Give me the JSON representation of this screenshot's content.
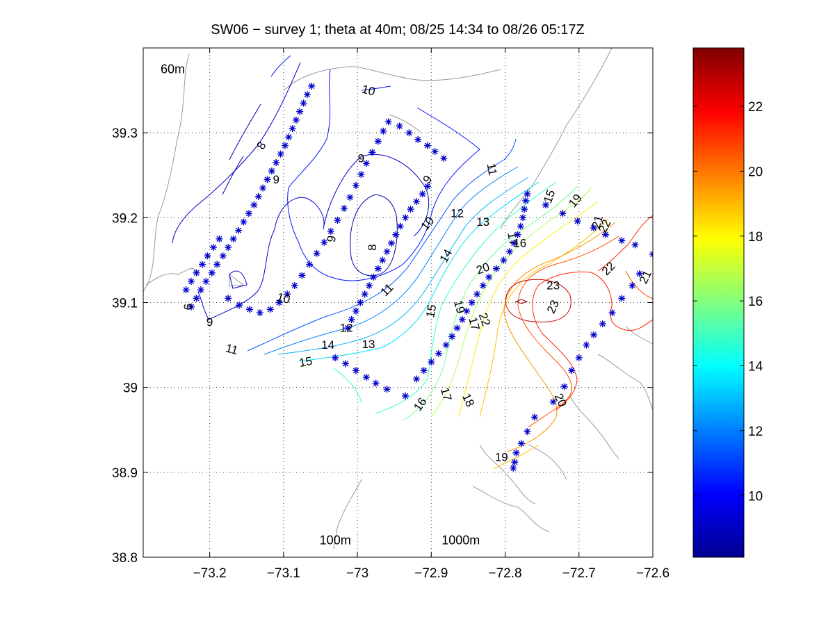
{
  "chart_data": {
    "type": "contour",
    "title": "SW06 − survey 1; theta at 40m; 08/25 14:34 to 08/26 05:17Z",
    "xlabel": "",
    "ylabel": "",
    "xlim": [
      -73.29,
      -72.6
    ],
    "ylim": [
      38.8,
      39.4
    ],
    "xticks": [
      -73.2,
      -73.1,
      -73.0,
      -72.9,
      -72.8,
      -72.7,
      -72.6
    ],
    "xtick_labels": [
      "−73.2",
      "−73.1",
      "−73",
      "−72.9",
      "−72.8",
      "−72.7",
      "−72.6"
    ],
    "yticks": [
      38.8,
      38.9,
      39.0,
      39.1,
      39.2,
      39.3
    ],
    "ytick_labels": [
      "38.8",
      "38.9",
      "39",
      "39.1",
      "39.2",
      "39.3"
    ],
    "grid": true,
    "colorbar": {
      "range": [
        8.1,
        23.8
      ],
      "ticks": [
        10,
        12,
        14,
        16,
        18,
        20,
        22
      ],
      "tick_labels": [
        "10",
        "12",
        "14",
        "16",
        "18",
        "20",
        "22"
      ],
      "colormap": "jet",
      "levels": 64
    },
    "isobath_labels": [
      {
        "text": "60m",
        "x": -73.25,
        "y": 39.37
      },
      {
        "text": "100m",
        "x": -73.03,
        "y": 38.815
      },
      {
        "text": "1000m",
        "x": -72.86,
        "y": 38.815
      }
    ],
    "contour_labels": [
      {
        "text": "10",
        "x": -72.985,
        "y": 39.35,
        "rot": 15
      },
      {
        "text": "8",
        "x": -73.13,
        "y": 39.285,
        "rot": -60
      },
      {
        "text": "9",
        "x": -73.11,
        "y": 39.245,
        "rot": 0
      },
      {
        "text": "9",
        "x": -72.995,
        "y": 39.27,
        "rot": 0
      },
      {
        "text": "9",
        "x": -72.905,
        "y": 39.245,
        "rot": -55
      },
      {
        "text": "9",
        "x": -73.035,
        "y": 39.175,
        "rot": -80
      },
      {
        "text": "8",
        "x": -72.98,
        "y": 39.165,
        "rot": -90
      },
      {
        "text": "9",
        "x": -73.23,
        "y": 39.095,
        "rot": 90
      },
      {
        "text": "9",
        "x": -73.2,
        "y": 39.077,
        "rot": 0
      },
      {
        "text": "10",
        "x": -73.1,
        "y": 39.105,
        "rot": 15
      },
      {
        "text": "10",
        "x": -72.905,
        "y": 39.193,
        "rot": -50
      },
      {
        "text": "11",
        "x": -72.818,
        "y": 39.257,
        "rot": 80
      },
      {
        "text": "11",
        "x": -72.96,
        "y": 39.115,
        "rot": -45
      },
      {
        "text": "11",
        "x": -73.17,
        "y": 39.045,
        "rot": 15
      },
      {
        "text": "12",
        "x": -73.015,
        "y": 39.07,
        "rot": 0
      },
      {
        "text": "12",
        "x": -72.865,
        "y": 39.205,
        "rot": 0
      },
      {
        "text": "13",
        "x": -72.985,
        "y": 39.051,
        "rot": 0
      },
      {
        "text": "13",
        "x": -72.83,
        "y": 39.195,
        "rot": 0
      },
      {
        "text": "14",
        "x": -73.04,
        "y": 39.05,
        "rot": 0
      },
      {
        "text": "14",
        "x": -72.88,
        "y": 39.155,
        "rot": -60
      },
      {
        "text": "15",
        "x": -73.07,
        "y": 39.03,
        "rot": -10
      },
      {
        "text": "15",
        "x": -72.9,
        "y": 39.09,
        "rot": -80
      },
      {
        "text": "15",
        "x": -72.74,
        "y": 39.225,
        "rot": -70
      },
      {
        "text": "16",
        "x": -72.78,
        "y": 39.17,
        "rot": 0
      },
      {
        "text": "16",
        "x": -72.915,
        "y": 38.98,
        "rot": -55
      },
      {
        "text": "17",
        "x": -72.79,
        "y": 39.175,
        "rot": 80
      },
      {
        "text": "17",
        "x": -72.88,
        "y": 38.992,
        "rot": 75
      },
      {
        "text": "17",
        "x": -72.842,
        "y": 39.075,
        "rot": 75
      },
      {
        "text": "18",
        "x": -72.85,
        "y": 38.985,
        "rot": 65
      },
      {
        "text": "19",
        "x": -72.705,
        "y": 39.22,
        "rot": -50
      },
      {
        "text": "19",
        "x": -72.862,
        "y": 39.095,
        "rot": 75
      },
      {
        "text": "19",
        "x": -72.805,
        "y": 38.918,
        "rot": 0
      },
      {
        "text": "20",
        "x": -72.83,
        "y": 39.14,
        "rot": -20
      },
      {
        "text": "20",
        "x": -72.725,
        "y": 38.985,
        "rot": 65
      },
      {
        "text": "21",
        "x": -72.675,
        "y": 39.195,
        "rot": -75
      },
      {
        "text": "21",
        "x": -72.61,
        "y": 39.13,
        "rot": -65
      },
      {
        "text": "22",
        "x": -72.665,
        "y": 39.19,
        "rot": -65
      },
      {
        "text": "22",
        "x": -72.66,
        "y": 39.14,
        "rot": -45
      },
      {
        "text": "22",
        "x": -72.828,
        "y": 39.08,
        "rot": 70
      },
      {
        "text": "23",
        "x": -72.735,
        "y": 39.12,
        "rot": 0
      },
      {
        "text": "23",
        "x": -72.735,
        "y": 39.095,
        "rot": -65
      }
    ],
    "stations": [
      [
        -73.062,
        39.355
      ],
      [
        -73.068,
        39.345
      ],
      [
        -73.073,
        39.335
      ],
      [
        -73.078,
        39.325
      ],
      [
        -73.083,
        39.315
      ],
      [
        -73.088,
        39.305
      ],
      [
        -73.093,
        39.295
      ],
      [
        -73.098,
        39.285
      ],
      [
        -73.104,
        39.275
      ],
      [
        -73.11,
        39.265
      ],
      [
        -73.116,
        39.255
      ],
      [
        -73.122,
        39.245
      ],
      [
        -73.128,
        39.235
      ],
      [
        -73.134,
        39.225
      ],
      [
        -73.14,
        39.215
      ],
      [
        -73.147,
        39.205
      ],
      [
        -73.154,
        39.195
      ],
      [
        -73.161,
        39.185
      ],
      [
        -73.168,
        39.175
      ],
      [
        -73.175,
        39.165
      ],
      [
        -73.182,
        39.155
      ],
      [
        -73.19,
        39.145
      ],
      [
        -73.197,
        39.135
      ],
      [
        -73.205,
        39.125
      ],
      [
        -73.212,
        39.115
      ],
      [
        -73.218,
        39.105
      ],
      [
        -73.225,
        39.095
      ],
      [
        -73.232,
        39.115
      ],
      [
        -73.225,
        39.125
      ],
      [
        -73.218,
        39.135
      ],
      [
        -73.21,
        39.145
      ],
      [
        -73.203,
        39.155
      ],
      [
        -73.195,
        39.165
      ],
      [
        -73.187,
        39.175
      ],
      [
        -73.175,
        39.105
      ],
      [
        -73.16,
        39.097
      ],
      [
        -73.146,
        39.092
      ],
      [
        -73.132,
        39.088
      ],
      [
        -73.118,
        39.092
      ],
      [
        -73.106,
        39.1
      ],
      [
        -73.095,
        39.11
      ],
      [
        -73.085,
        39.12
      ],
      [
        -73.075,
        39.132
      ],
      [
        -73.065,
        39.145
      ],
      [
        -73.055,
        39.158
      ],
      [
        -73.045,
        39.171
      ],
      [
        -73.036,
        39.184
      ],
      [
        -73.027,
        39.197
      ],
      [
        -73.018,
        39.211
      ],
      [
        -73.01,
        39.224
      ],
      [
        -73.002,
        39.238
      ],
      [
        -72.995,
        39.251
      ],
      [
        -72.988,
        39.264
      ],
      [
        -72.98,
        39.277
      ],
      [
        -72.972,
        39.29
      ],
      [
        -72.965,
        39.302
      ],
      [
        -72.958,
        39.313
      ],
      [
        -72.943,
        39.308
      ],
      [
        -72.93,
        39.3
      ],
      [
        -72.918,
        39.292
      ],
      [
        -72.905,
        39.285
      ],
      [
        -72.895,
        39.278
      ],
      [
        -72.883,
        39.27
      ],
      [
        -72.905,
        39.237
      ],
      [
        -72.912,
        39.228
      ],
      [
        -72.92,
        39.219
      ],
      [
        -72.928,
        39.21
      ],
      [
        -72.935,
        39.2
      ],
      [
        -72.942,
        39.19
      ],
      [
        -72.948,
        39.18
      ],
      [
        -72.954,
        39.17
      ],
      [
        -72.96,
        39.16
      ],
      [
        -72.966,
        39.15
      ],
      [
        -72.972,
        39.14
      ],
      [
        -72.978,
        39.13
      ],
      [
        -72.984,
        39.12
      ],
      [
        -72.99,
        39.11
      ],
      [
        -72.996,
        39.1
      ],
      [
        -73.002,
        39.09
      ],
      [
        -73.008,
        39.08
      ],
      [
        -73.013,
        39.07
      ],
      [
        -73.03,
        39.035
      ],
      [
        -73.016,
        39.028
      ],
      [
        -73.002,
        39.02
      ],
      [
        -72.988,
        39.012
      ],
      [
        -72.975,
        39.005
      ],
      [
        -72.96,
        38.998
      ],
      [
        -72.935,
        38.99
      ],
      [
        -72.92,
        39.01
      ],
      [
        -72.91,
        39.02
      ],
      [
        -72.9,
        39.03
      ],
      [
        -72.89,
        39.04
      ],
      [
        -72.88,
        39.05
      ],
      [
        -72.872,
        39.06
      ],
      [
        -72.865,
        39.07
      ],
      [
        -72.858,
        39.08
      ],
      [
        -72.852,
        39.09
      ],
      [
        -72.845,
        39.1
      ],
      [
        -72.838,
        39.11
      ],
      [
        -72.83,
        39.12
      ],
      [
        -72.822,
        39.13
      ],
      [
        -72.812,
        39.14
      ],
      [
        -72.802,
        39.15
      ],
      [
        -72.794,
        39.16
      ],
      [
        -72.788,
        39.17
      ],
      [
        -72.783,
        39.18
      ],
      [
        -72.779,
        39.19
      ],
      [
        -72.776,
        39.2
      ],
      [
        -72.774,
        39.21
      ],
      [
        -72.772,
        39.22
      ],
      [
        -72.77,
        39.228
      ],
      [
        -72.745,
        39.215
      ],
      [
        -72.722,
        39.205
      ],
      [
        -72.702,
        39.196
      ],
      [
        -72.68,
        39.188
      ],
      [
        -72.664,
        39.18
      ],
      [
        -72.642,
        39.173
      ],
      [
        -72.624,
        39.168
      ],
      [
        -72.6,
        39.157
      ],
      [
        -72.618,
        39.134
      ],
      [
        -72.628,
        39.12
      ],
      [
        -72.642,
        39.105
      ],
      [
        -72.655,
        39.088
      ],
      [
        -72.668,
        39.075
      ],
      [
        -72.68,
        39.062
      ],
      [
        -72.69,
        39.05
      ],
      [
        -72.7,
        39.035
      ],
      [
        -72.71,
        39.02
      ],
      [
        -72.72,
        39.001
      ],
      [
        -72.735,
        38.983
      ],
      [
        -72.76,
        38.965
      ],
      [
        -72.77,
        38.948
      ],
      [
        -72.778,
        38.934
      ],
      [
        -72.785,
        38.923
      ],
      [
        -72.787,
        38.912
      ],
      [
        -72.789,
        38.905
      ]
    ]
  }
}
